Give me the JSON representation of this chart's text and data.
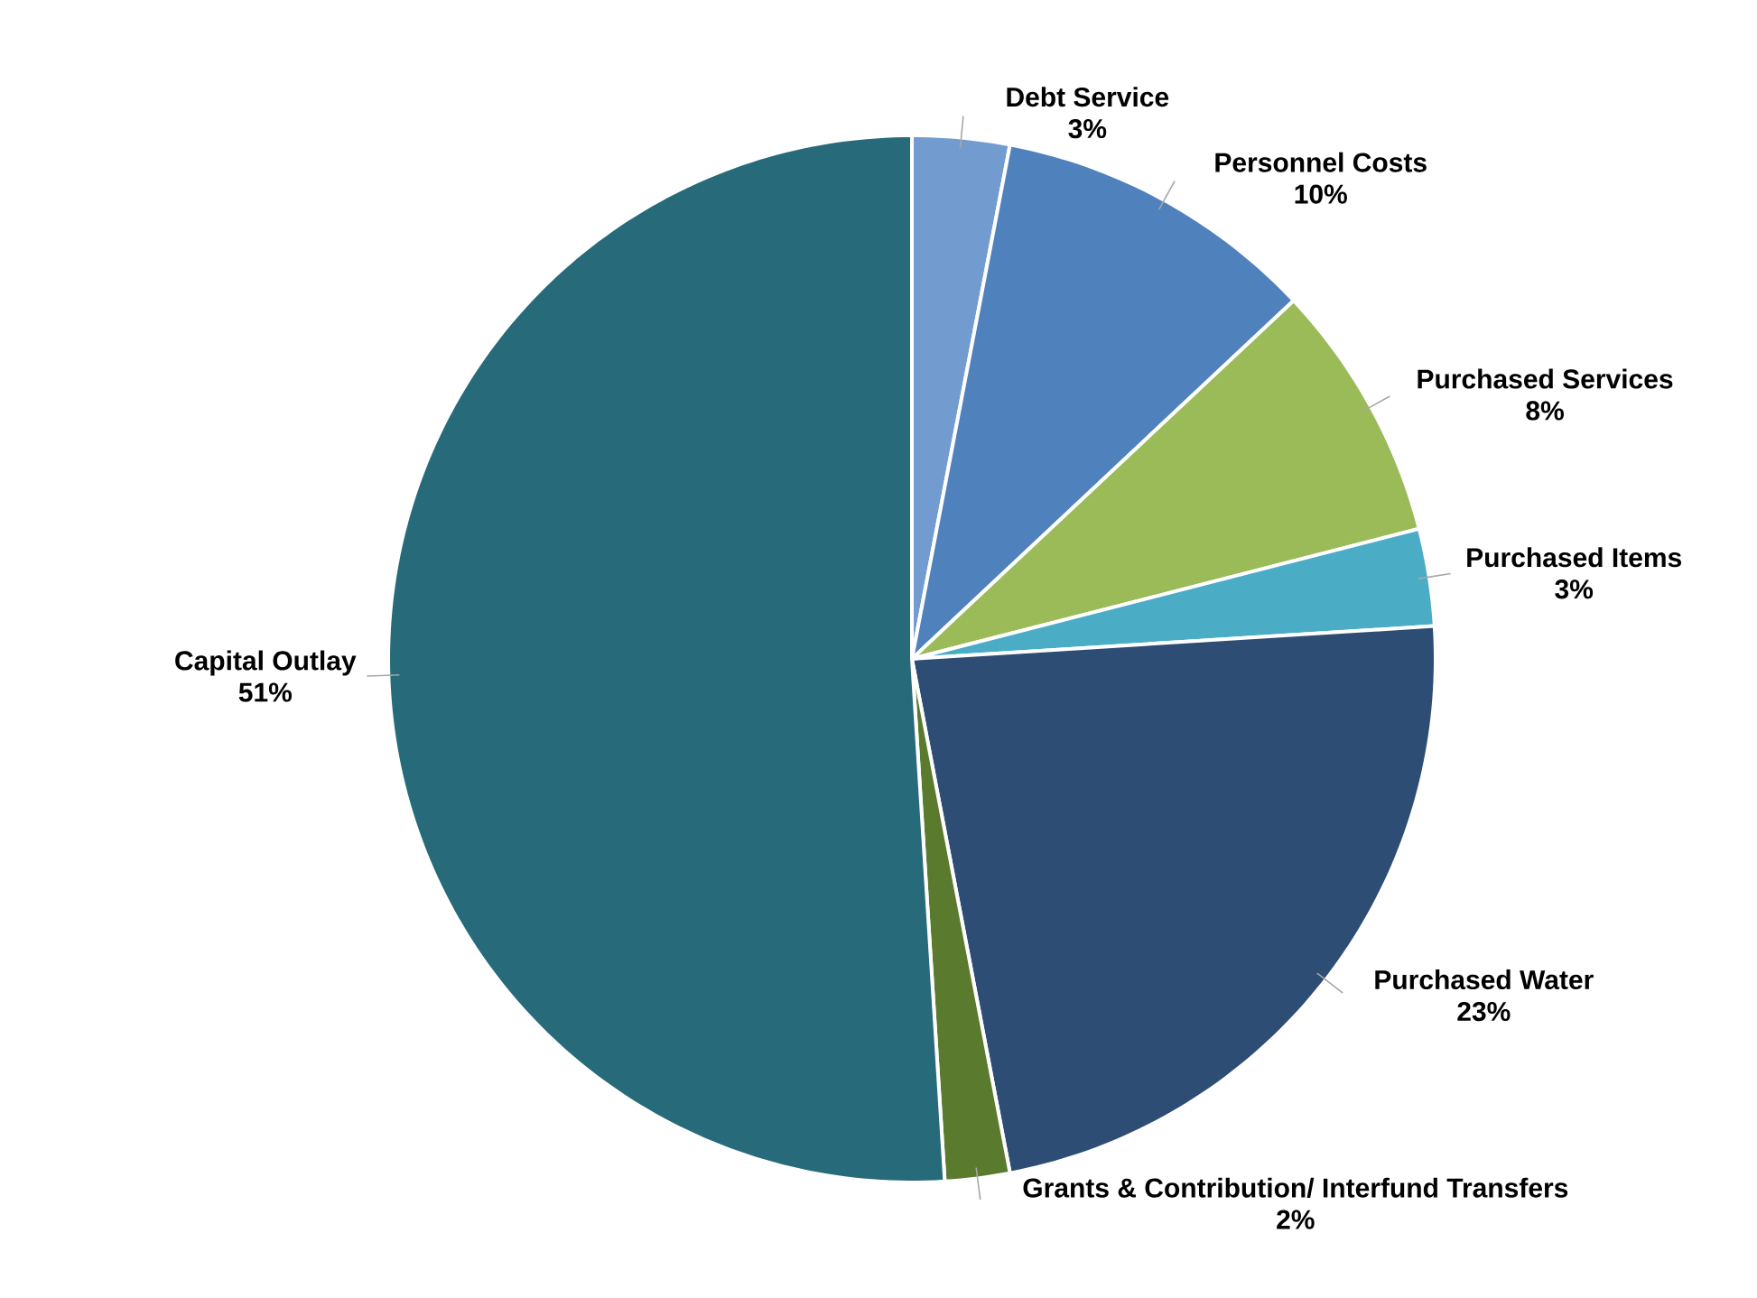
{
  "chart_data": {
    "type": "pie",
    "categories": [
      "Debt Service",
      "Personnel Costs",
      "Purchased Services",
      "Purchased Items",
      "Purchased Water",
      "Grants & Contribution/ Interfund Transfers",
      "Capital Outlay"
    ],
    "values": [
      3,
      10,
      8,
      3,
      23,
      2,
      51
    ],
    "value_labels": [
      "3%",
      "10%",
      "8%",
      "3%",
      "23%",
      "2%",
      "51%"
    ],
    "colors": [
      "#729ccf",
      "#4f81bd",
      "#9bbb59",
      "#4bacc6",
      "#2e4d75",
      "#5a7a2e",
      "#276b7a"
    ]
  }
}
